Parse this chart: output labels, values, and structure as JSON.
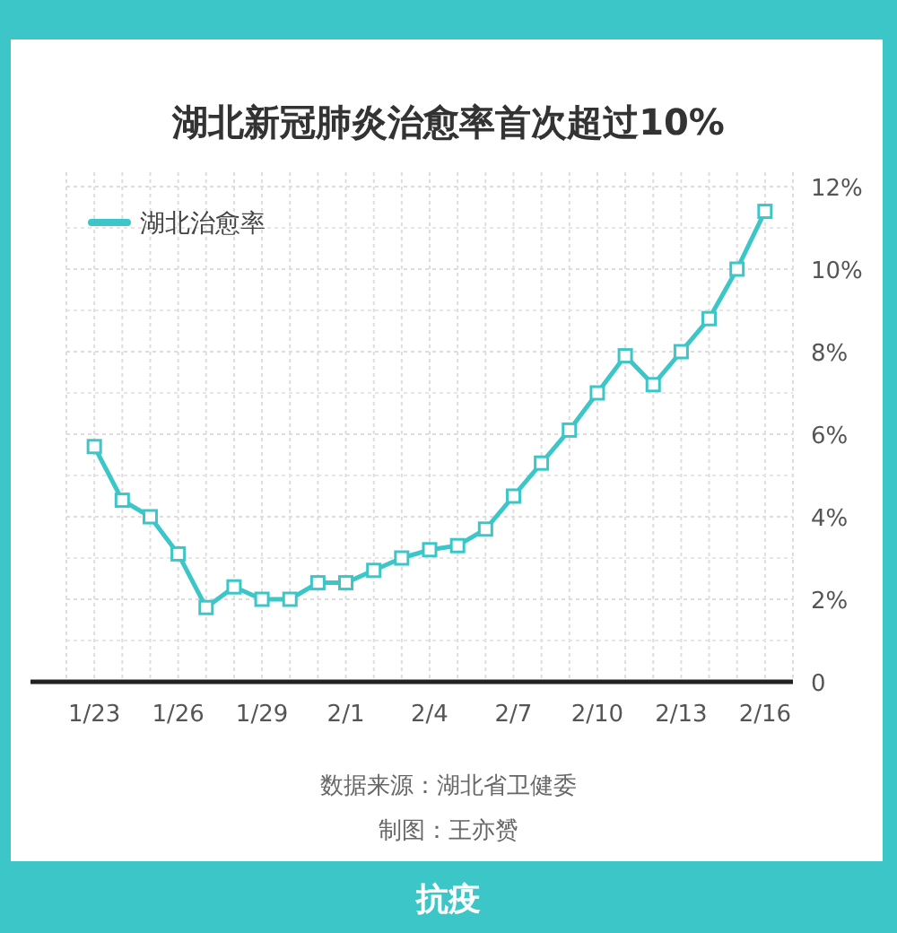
{
  "chart_data": {
    "type": "line",
    "title": "湖北新冠肺炎治愈率首次超过10%",
    "x": [
      "--01-23",
      "--01-24",
      "--01-25",
      "--01-26",
      "--01-27",
      "--01-28",
      "--01-29",
      "--01-30",
      "--01-31",
      "--02-01",
      "--02-02",
      "--02-03",
      "--02-04",
      "--02-05",
      "--02-06",
      "--02-07",
      "--02-08",
      "--02-09",
      "--02-10",
      "--02-11",
      "--02-12",
      "--02-13",
      "--02-14",
      "--02-15",
      "--02-16"
    ],
    "series": [
      {
        "name": "湖北治愈率",
        "color": "#3cc6c8",
        "values": [
          5.7,
          4.4,
          4.0,
          3.1,
          1.8,
          2.3,
          2.0,
          2.0,
          2.4,
          2.4,
          2.7,
          3.0,
          3.2,
          3.3,
          3.7,
          4.5,
          5.3,
          6.1,
          7.0,
          7.9,
          7.2,
          8.0,
          8.8,
          10.0,
          11.4
        ]
      }
    ],
    "xlim": [
      "--01-22",
      "--02-17"
    ],
    "xticks": [
      {
        "value": "--01-23",
        "label": "1/23"
      },
      {
        "value": "--01-26",
        "label": "1/26"
      },
      {
        "value": "--01-29",
        "label": "1/29"
      },
      {
        "value": "--02-01",
        "label": "2/1"
      },
      {
        "value": "--02-04",
        "label": "2/4"
      },
      {
        "value": "--02-07",
        "label": "2/7"
      },
      {
        "value": "--02-10",
        "label": "2/10"
      },
      {
        "value": "--02-13",
        "label": "2/13"
      },
      {
        "value": "--02-16",
        "label": "2/16"
      }
    ],
    "ylim": [
      0,
      12
    ],
    "yticks": [
      0,
      {
        "value": 2,
        "label": "2%"
      },
      {
        "value": 4,
        "label": "4%"
      },
      {
        "value": 6,
        "label": "6%"
      },
      {
        "value": 8,
        "label": "8%"
      },
      {
        "value": 10,
        "label": "10%"
      },
      {
        "value": 12,
        "label": "12%"
      }
    ],
    "grid": true,
    "legend": "top left",
    "marker": "square",
    "line_style": "solid",
    "annotations": [
      "数据来源：湖北省卫健委",
      "制图：王亦赟",
      "抗疫"
    ]
  }
}
